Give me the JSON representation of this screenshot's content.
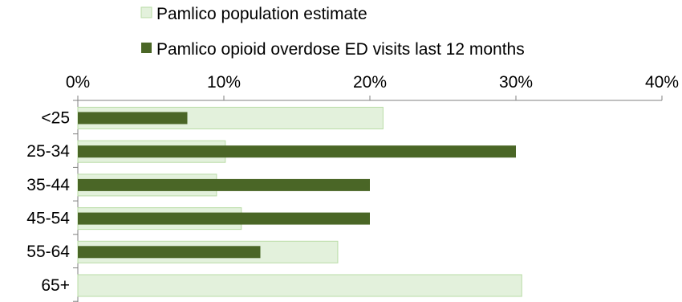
{
  "chart_data": {
    "type": "bar",
    "orientation": "horizontal",
    "categories": [
      "<25",
      "25-34",
      "35-44",
      "45-54",
      "55-64",
      "65+"
    ],
    "series": [
      {
        "name": "Pamlico population estimate",
        "values": [
          20.9,
          10.1,
          9.5,
          11.2,
          17.8,
          30.4
        ],
        "color": "#e3f1dc",
        "stroke": "#b9dca6"
      },
      {
        "name": "Pamlico opioid overdose ED visits last 12 months",
        "values": [
          7.5,
          30.0,
          20.0,
          20.0,
          12.5,
          0
        ],
        "color": "#4a6626",
        "stroke": "#3f5a20"
      }
    ],
    "x_ticks": [
      "0%",
      "10%",
      "20%",
      "30%",
      "40%"
    ],
    "xlim": [
      0,
      40
    ],
    "axis_position": "top",
    "legend_position": "top",
    "grid": false
  }
}
